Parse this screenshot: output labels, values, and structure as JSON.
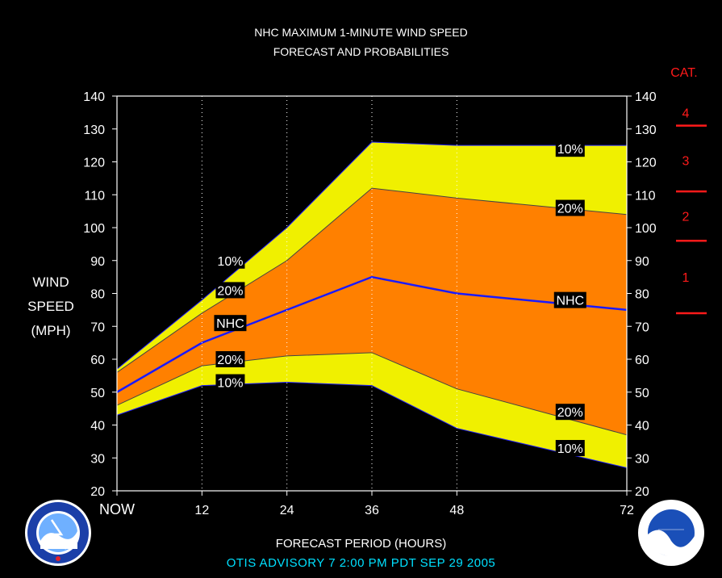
{
  "header": {
    "title_line1": "NHC MAXIMUM 1-MINUTE WIND SPEED",
    "title_line2": "FORECAST AND PROBABILITIES"
  },
  "y_axis": {
    "label_line1": "WIND",
    "label_line2": "SPEED",
    "label_line3": "(MPH)"
  },
  "x_axis": {
    "label": "FORECAST PERIOD (HOURS)"
  },
  "advisory": "OTIS   ADVISORY  7  2:00  PM  PDT  SEP  29  2005",
  "category_scale": {
    "title": "CAT.",
    "color": "#ff1a1a",
    "labels": [
      "4",
      "3",
      "2",
      "1"
    ],
    "thresholds": [
      74,
      96,
      111,
      131
    ]
  },
  "colors": {
    "outer_band": "#f0f000",
    "inner_band": "#ff8000",
    "nhc_line": "#1a1aff",
    "advisory_text": "#00e0ff"
  },
  "logos": {
    "left": "National Weather Service",
    "right": "NOAA"
  },
  "chart_data": {
    "type": "area",
    "x": [
      0,
      12,
      24,
      36,
      48,
      72
    ],
    "x_tick_labels": [
      "NOW",
      "12",
      "24",
      "36",
      "48",
      "72"
    ],
    "xlim": [
      0,
      72
    ],
    "ylim": [
      20,
      140
    ],
    "y_ticks": [
      20,
      30,
      40,
      50,
      60,
      70,
      80,
      90,
      100,
      110,
      120,
      130,
      140
    ],
    "grid": "vertical dotted at 12, 24, 36, 48",
    "series": [
      {
        "name": "10%",
        "values": [
          57,
          78,
          100,
          126,
          125,
          125
        ]
      },
      {
        "name": "20%",
        "values": [
          56,
          74,
          90,
          112,
          109,
          104
        ]
      },
      {
        "name": "NHC",
        "values": [
          50,
          65,
          75,
          85,
          80,
          75
        ]
      },
      {
        "name": "20%",
        "values": [
          46,
          58,
          61,
          62,
          51,
          37
        ]
      },
      {
        "name": "10%",
        "values": [
          43,
          52,
          53,
          52,
          39,
          27
        ]
      }
    ],
    "annotations": [
      {
        "text": "10%",
        "x": 16,
        "y": 90
      },
      {
        "text": "20%",
        "x": 16,
        "y": 81
      },
      {
        "text": "NHC",
        "x": 16,
        "y": 71
      },
      {
        "text": "20%",
        "x": 16,
        "y": 60
      },
      {
        "text": "10%",
        "x": 16,
        "y": 53
      },
      {
        "text": "10%",
        "x": 64,
        "y": 124
      },
      {
        "text": "20%",
        "x": 64,
        "y": 106
      },
      {
        "text": "NHC",
        "x": 64,
        "y": 78
      },
      {
        "text": "20%",
        "x": 64,
        "y": 44
      },
      {
        "text": "10%",
        "x": 64,
        "y": 33
      }
    ]
  }
}
